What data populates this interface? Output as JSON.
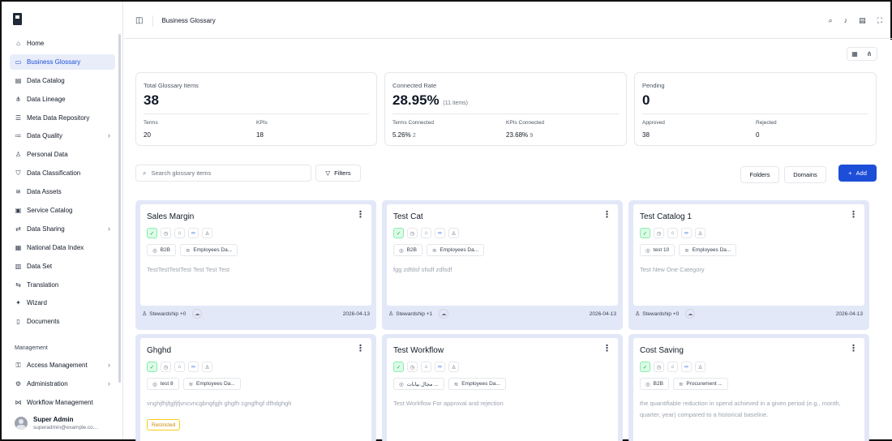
{
  "sidebar": {
    "items": [
      {
        "label": "Home",
        "icon": "home-icon",
        "glyph": "⌂"
      },
      {
        "label": "Business Glossary",
        "icon": "book-icon",
        "glyph": "▭",
        "active": true
      },
      {
        "label": "Data Catalog",
        "icon": "catalog-icon",
        "glyph": "▤"
      },
      {
        "label": "Data Lineage",
        "icon": "lineage-icon",
        "glyph": "⋔"
      },
      {
        "label": "Meta Data Repository",
        "icon": "database-icon",
        "glyph": "☰"
      },
      {
        "label": "Data Quality",
        "icon": "list-check-icon",
        "glyph": "≔",
        "chevron": true
      },
      {
        "label": "Personal Data",
        "icon": "user-icon",
        "glyph": "♙"
      },
      {
        "label": "Data Classification",
        "icon": "shield-icon",
        "glyph": "⛉"
      },
      {
        "label": "Data Assets",
        "icon": "stack-icon",
        "glyph": "≋"
      },
      {
        "label": "Service Catalog",
        "icon": "service-icon",
        "glyph": "▣"
      },
      {
        "label": "Data Sharing",
        "icon": "share-icon",
        "glyph": "⇄",
        "chevron": true
      },
      {
        "label": "National Data Index",
        "icon": "index-icon",
        "glyph": "▦"
      },
      {
        "label": "Data Set",
        "icon": "dataset-icon",
        "glyph": "▥"
      },
      {
        "label": "Translation",
        "icon": "translate-icon",
        "glyph": "⇆"
      },
      {
        "label": "Wizard",
        "icon": "wand-icon",
        "glyph": "✦"
      },
      {
        "label": "Documents",
        "icon": "document-icon",
        "glyph": "▯"
      }
    ],
    "section_label": "Management",
    "management_items": [
      {
        "label": "Access Management",
        "icon": "key-icon",
        "glyph": "⚿",
        "chevron": true
      },
      {
        "label": "Administration",
        "icon": "gear-icon",
        "glyph": "⚙",
        "chevron": true
      },
      {
        "label": "Workflow Management",
        "icon": "workflow-icon",
        "glyph": "⋈"
      }
    ],
    "user": {
      "name": "Super Admin",
      "email": "superadmin@example.co..."
    }
  },
  "header": {
    "title": "Business Glossary"
  },
  "stats": {
    "total": {
      "label": "Total Glossary Items",
      "value": "38",
      "terms_label": "Terms",
      "terms_value": "20",
      "kpis_label": "KPIs",
      "kpis_value": "18"
    },
    "connected": {
      "label": "Connected Rate",
      "value": "28.95%",
      "sub": "(11 items)",
      "terms_label": "Terms Connected",
      "terms_value": "5.26%",
      "terms_extra": "2",
      "kpis_label": "KPIs Connected",
      "kpis_value": "23.68%",
      "kpis_extra": "9"
    },
    "pending": {
      "label": "Pending",
      "value": "0",
      "approved_label": "Approved",
      "approved_value": "38",
      "rejected_label": "Rejected",
      "rejected_value": "0"
    }
  },
  "toolbar": {
    "search_placeholder": "Search glossary items",
    "filters_label": "Filters",
    "folders_label": "Folders",
    "domains_label": "Domains",
    "add_label": "Add"
  },
  "cards": [
    {
      "title": "Sales Margin",
      "tag1": "B2B",
      "tag2": "Employees Da...",
      "desc": "TestTestTestTest Test Test Test",
      "stewardship": "Stewardship +0",
      "date": "2026-04-13"
    },
    {
      "title": "Test Cat",
      "tag1": "B2B",
      "tag2": "Employees Da...",
      "desc": "fgg zdfdsf sfsdf zdfsdf",
      "stewardship": "Stewardship +1",
      "date": "2026-04-13"
    },
    {
      "title": "Test Catalog 1",
      "tag1": "test 10",
      "tag2": "Employees Da...",
      "desc": "Test New One Category",
      "stewardship": "Stewardship +0",
      "date": "2026-04-13"
    },
    {
      "title": "Ghghd",
      "tag1": "test 8",
      "tag2": "Employees Da...",
      "desc": "vnghjfhjfgjfjfjvncvncgbngfgjh ghgfh cgngfhgf dfhdghgh",
      "restricted": "Restricted"
    },
    {
      "title": "Test Workflow",
      "tag1": "مجال بيانات ...",
      "tag2": "Employees Da...",
      "desc": "Test Workflow For approval and rejection"
    },
    {
      "title": "Cost Saving",
      "tag1": "B2B",
      "tag2": "Procurement ...",
      "desc": "the quantifiable reduction in spend achieved in a given period (e.g., month, quarter, year) compared to a historical baseline."
    }
  ]
}
